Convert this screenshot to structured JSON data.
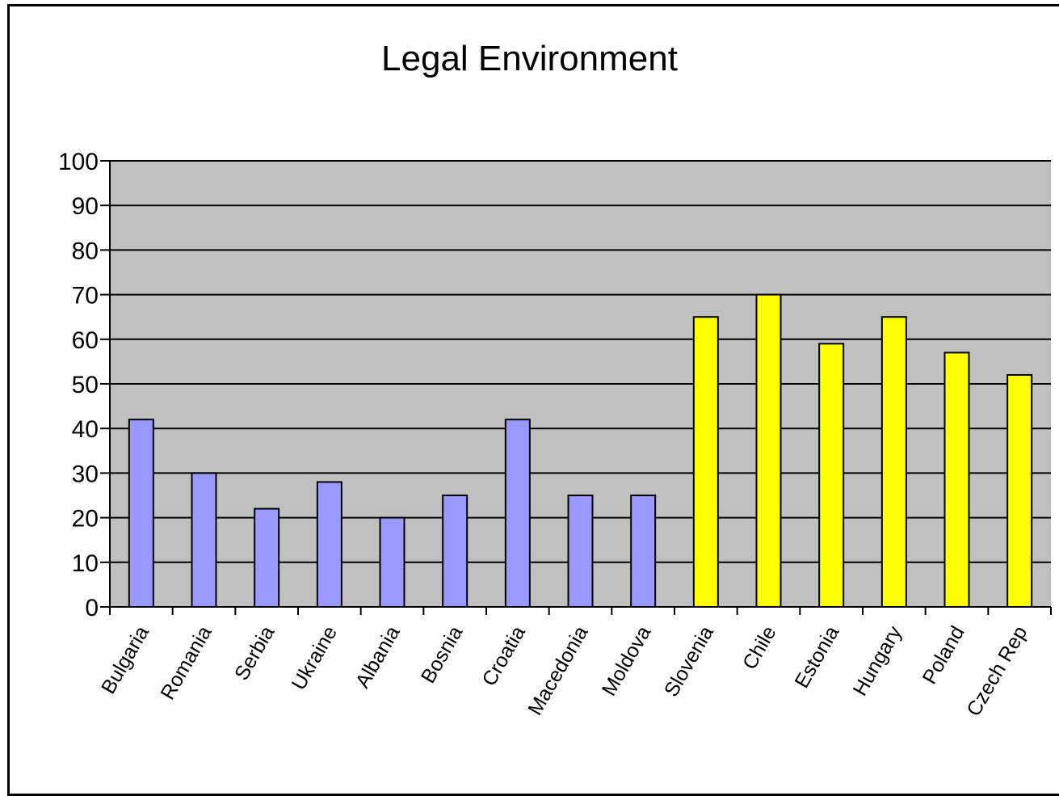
{
  "chart_data": {
    "type": "bar",
    "title": "Legal Environment",
    "xlabel": "",
    "ylabel": "",
    "ylim": [
      0,
      100
    ],
    "yticks": [
      0,
      10,
      20,
      30,
      40,
      50,
      60,
      70,
      80,
      90,
      100
    ],
    "grid": true,
    "legend": "none",
    "categories": [
      "Bulgaria",
      "Romania",
      "Serbia",
      "Ukraine",
      "Albania",
      "Bosnia",
      "Croatia",
      "Macedonia",
      "Moldova",
      "Slovenia",
      "Chile",
      "Estonia",
      "Hungary",
      "Poland",
      "Czech Rep"
    ],
    "values": [
      42,
      30,
      22,
      28,
      20,
      25,
      42,
      25,
      25,
      65,
      70,
      59,
      65,
      57,
      52
    ],
    "bar_colors": [
      "#9999ff",
      "#9999ff",
      "#9999ff",
      "#9999ff",
      "#9999ff",
      "#9999ff",
      "#9999ff",
      "#9999ff",
      "#9999ff",
      "#ffff00",
      "#ffff00",
      "#ffff00",
      "#ffff00",
      "#ffff00",
      "#ffff00"
    ],
    "plot_background": "#c0c0c0"
  }
}
